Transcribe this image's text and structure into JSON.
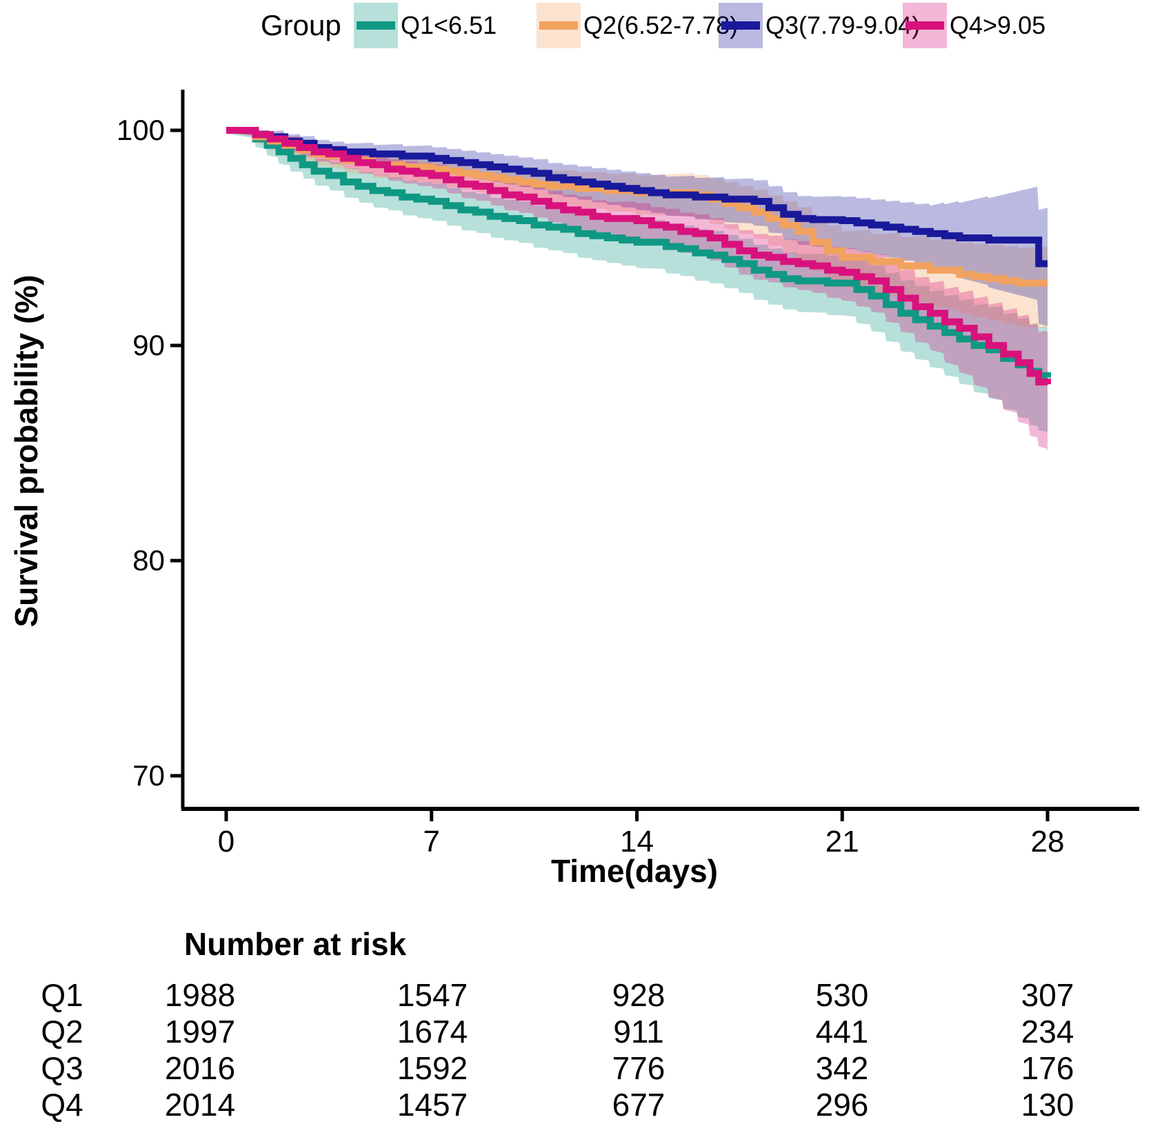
{
  "legend": {
    "title": "Group"
  },
  "axes": {
    "x_title": "Time(days)",
    "y_title": "Survival probability (%)"
  },
  "risk_table": {
    "title": "Number at risk",
    "time_points": [
      0,
      7,
      14,
      21,
      28
    ],
    "rows": [
      {
        "label": "Q1",
        "values": [
          1988,
          1547,
          928,
          530,
          307
        ]
      },
      {
        "label": "Q2",
        "values": [
          1997,
          1674,
          911,
          441,
          234
        ]
      },
      {
        "label": "Q3",
        "values": [
          2016,
          1592,
          776,
          342,
          176
        ]
      },
      {
        "label": "Q4",
        "values": [
          2014,
          1457,
          677,
          296,
          130
        ]
      }
    ]
  },
  "chart_data": {
    "type": "line",
    "subtype": "kaplan-meier-step-with-ci-bands",
    "title": "",
    "xlabel": "Time(days)",
    "ylabel": "Survival probability (%)",
    "xlim": [
      0,
      28
    ],
    "ylim": [
      68,
      101
    ],
    "xticks": [
      0,
      7,
      14,
      21,
      28
    ],
    "yticks": [
      100,
      90,
      80,
      70
    ],
    "grid": false,
    "legend_title": "Group",
    "legend_position": "top",
    "axis_color": "#000000",
    "series": [
      {
        "name": "Q1<6.51",
        "color": "#0F9884",
        "points": [
          [
            0,
            100
          ],
          [
            1,
            99.6
          ],
          [
            1.4,
            99.3
          ],
          [
            1.8,
            99.0
          ],
          [
            2.2,
            98.7
          ],
          [
            2.6,
            98.4
          ],
          [
            3,
            98.1
          ],
          [
            3.5,
            97.9
          ],
          [
            4,
            97.6
          ],
          [
            4.5,
            97.4
          ],
          [
            5,
            97.2
          ],
          [
            5.5,
            97.1
          ],
          [
            6,
            96.9
          ],
          [
            6.5,
            96.8
          ],
          [
            7,
            96.7
          ],
          [
            7.5,
            96.5
          ],
          [
            8,
            96.3
          ],
          [
            8.5,
            96.2
          ],
          [
            9,
            96.0
          ],
          [
            9.5,
            95.9
          ],
          [
            10,
            95.8
          ],
          [
            10.5,
            95.6
          ],
          [
            11,
            95.5
          ],
          [
            11.5,
            95.4
          ],
          [
            12,
            95.2
          ],
          [
            12.5,
            95.1
          ],
          [
            13,
            95.0
          ],
          [
            13.5,
            94.9
          ],
          [
            14,
            94.8
          ],
          [
            15,
            94.6
          ],
          [
            15.5,
            94.5
          ],
          [
            16,
            94.3
          ],
          [
            16.5,
            94.2
          ],
          [
            17,
            94.0
          ],
          [
            17.5,
            93.8
          ],
          [
            18,
            93.5
          ],
          [
            18.5,
            93.3
          ],
          [
            19,
            93.1
          ],
          [
            19.5,
            93.0
          ],
          [
            20.5,
            92.9
          ],
          [
            21.5,
            92.6
          ],
          [
            22,
            92.3
          ],
          [
            22.5,
            91.9
          ],
          [
            23,
            91.5
          ],
          [
            23.5,
            91.2
          ],
          [
            24,
            90.9
          ],
          [
            24.5,
            90.6
          ],
          [
            25,
            90.3
          ],
          [
            25.5,
            90.0
          ],
          [
            26,
            89.8
          ],
          [
            26.5,
            89.4
          ],
          [
            27,
            89.1
          ],
          [
            27.4,
            88.8
          ],
          [
            27.7,
            88.6
          ],
          [
            28,
            88.5
          ]
        ],
        "ci_days": [
          0,
          2,
          7,
          14,
          21,
          24,
          28
        ],
        "ci_upper": [
          0.15,
          0.5,
          0.8,
          1.0,
          1.3,
          1.6,
          2.3
        ],
        "ci_lower": [
          0.15,
          0.6,
          0.9,
          1.2,
          1.5,
          1.9,
          2.6
        ]
      },
      {
        "name": "Q2(6.52-7.78)",
        "color": "#F2A25F",
        "points": [
          [
            0,
            100
          ],
          [
            1,
            99.7
          ],
          [
            1.5,
            99.5
          ],
          [
            2,
            99.3
          ],
          [
            2.5,
            99.1
          ],
          [
            3,
            98.9
          ],
          [
            3.5,
            98.8
          ],
          [
            4,
            98.6
          ],
          [
            5,
            98.4
          ],
          [
            6,
            98.3
          ],
          [
            7,
            98.2
          ],
          [
            7.5,
            98.1
          ],
          [
            8,
            98.0
          ],
          [
            8.5,
            97.9
          ],
          [
            9,
            97.8
          ],
          [
            9.5,
            97.7
          ],
          [
            10,
            97.6
          ],
          [
            10.5,
            97.5
          ],
          [
            11,
            97.4
          ],
          [
            12,
            97.3
          ],
          [
            13,
            97.2
          ],
          [
            14,
            97.1
          ],
          [
            16,
            97.0
          ],
          [
            16.5,
            96.8
          ],
          [
            17,
            96.6
          ],
          [
            17.5,
            96.4
          ],
          [
            18,
            96.2
          ],
          [
            18.5,
            95.9
          ],
          [
            19,
            95.6
          ],
          [
            19.5,
            95.3
          ],
          [
            20,
            94.8
          ],
          [
            20.5,
            94.4
          ],
          [
            21,
            94.1
          ],
          [
            22,
            93.9
          ],
          [
            23,
            93.7
          ],
          [
            24,
            93.5
          ],
          [
            25,
            93.3
          ],
          [
            25.5,
            93.2
          ],
          [
            26,
            93.1
          ],
          [
            26.5,
            93.0
          ],
          [
            27,
            92.9
          ],
          [
            28,
            92.9
          ]
        ],
        "ci_days": [
          0,
          2,
          7,
          14,
          21,
          24,
          28
        ],
        "ci_upper": [
          0.1,
          0.4,
          0.6,
          0.8,
          1.2,
          1.4,
          1.7
        ],
        "ci_lower": [
          0.1,
          0.5,
          0.7,
          1.0,
          1.4,
          1.7,
          2.1
        ]
      },
      {
        "name": "Q3(7.79-9.04)",
        "color": "#19199B",
        "points": [
          [
            0,
            100
          ],
          [
            1,
            99.8
          ],
          [
            1.5,
            99.7
          ],
          [
            2,
            99.5
          ],
          [
            2.5,
            99.4
          ],
          [
            3,
            99.2
          ],
          [
            3.5,
            99.1
          ],
          [
            4,
            99.0
          ],
          [
            5,
            98.9
          ],
          [
            6,
            98.8
          ],
          [
            7,
            98.7
          ],
          [
            7.5,
            98.6
          ],
          [
            8,
            98.5
          ],
          [
            8.5,
            98.4
          ],
          [
            9,
            98.3
          ],
          [
            9.5,
            98.2
          ],
          [
            10,
            98.1
          ],
          [
            10.5,
            98.0
          ],
          [
            11,
            97.8
          ],
          [
            11.5,
            97.7
          ],
          [
            12,
            97.6
          ],
          [
            12.5,
            97.5
          ],
          [
            13,
            97.4
          ],
          [
            13.5,
            97.3
          ],
          [
            14,
            97.2
          ],
          [
            14.5,
            97.1
          ],
          [
            15,
            97.0
          ],
          [
            16,
            96.9
          ],
          [
            17,
            96.8
          ],
          [
            18,
            96.7
          ],
          [
            18.5,
            96.4
          ],
          [
            19,
            96.1
          ],
          [
            19.5,
            95.9
          ],
          [
            20,
            95.85
          ],
          [
            21,
            95.8
          ],
          [
            21.5,
            95.7
          ],
          [
            22,
            95.6
          ],
          [
            22.5,
            95.5
          ],
          [
            23,
            95.4
          ],
          [
            23.5,
            95.3
          ],
          [
            24,
            95.2
          ],
          [
            24.5,
            95.1
          ],
          [
            25,
            95.0
          ],
          [
            26,
            94.9
          ],
          [
            27.7,
            93.8
          ],
          [
            28,
            93.8
          ]
        ],
        "ci_days": [
          0,
          2,
          7,
          14,
          21,
          24,
          28
        ],
        "ci_upper": [
          0.1,
          0.3,
          0.5,
          0.8,
          1.1,
          1.3,
          2.6
        ],
        "ci_lower": [
          0.1,
          0.4,
          0.6,
          0.9,
          1.3,
          1.5,
          2.9
        ]
      },
      {
        "name": "Q4>9.05",
        "color": "#D8127D",
        "points": [
          [
            0,
            100
          ],
          [
            1,
            99.8
          ],
          [
            1.5,
            99.6
          ],
          [
            2,
            99.4
          ],
          [
            2.5,
            99.2
          ],
          [
            3,
            99.0
          ],
          [
            3.5,
            98.9
          ],
          [
            4,
            98.7
          ],
          [
            4.5,
            98.5
          ],
          [
            5,
            98.4
          ],
          [
            5.5,
            98.2
          ],
          [
            6,
            98.1
          ],
          [
            6.5,
            98.0
          ],
          [
            7,
            97.9
          ],
          [
            7.5,
            97.7
          ],
          [
            8,
            97.5
          ],
          [
            8.5,
            97.4
          ],
          [
            9,
            97.2
          ],
          [
            9.5,
            97.0
          ],
          [
            10,
            96.9
          ],
          [
            10.5,
            96.7
          ],
          [
            11,
            96.5
          ],
          [
            11.5,
            96.3
          ],
          [
            12,
            96.2
          ],
          [
            12.5,
            96.0
          ],
          [
            13,
            95.9
          ],
          [
            14,
            95.8
          ],
          [
            14.5,
            95.6
          ],
          [
            15,
            95.5
          ],
          [
            15.5,
            95.3
          ],
          [
            16,
            95.2
          ],
          [
            16.5,
            95.0
          ],
          [
            17,
            94.7
          ],
          [
            17.5,
            94.4
          ],
          [
            18,
            94.2
          ],
          [
            18.5,
            94.1
          ],
          [
            19,
            93.9
          ],
          [
            19.5,
            93.8
          ],
          [
            20,
            93.7
          ],
          [
            20.5,
            93.5
          ],
          [
            21,
            93.4
          ],
          [
            21.5,
            93.2
          ],
          [
            22,
            93.0
          ],
          [
            22.5,
            92.6
          ],
          [
            23,
            92.2
          ],
          [
            23.5,
            91.8
          ],
          [
            24,
            91.5
          ],
          [
            24.5,
            91.1
          ],
          [
            25,
            90.8
          ],
          [
            25.5,
            90.4
          ],
          [
            26,
            90.0
          ],
          [
            26.5,
            89.6
          ],
          [
            27,
            89.2
          ],
          [
            27.4,
            88.7
          ],
          [
            27.7,
            88.3
          ],
          [
            28,
            88.2
          ]
        ],
        "ci_days": [
          0,
          2,
          7,
          14,
          21,
          24,
          28
        ],
        "ci_upper": [
          0.1,
          0.3,
          0.5,
          0.8,
          1.1,
          1.4,
          2.4
        ],
        "ci_lower": [
          0.1,
          0.4,
          0.6,
          0.9,
          1.3,
          1.7,
          3.1
        ]
      }
    ]
  }
}
